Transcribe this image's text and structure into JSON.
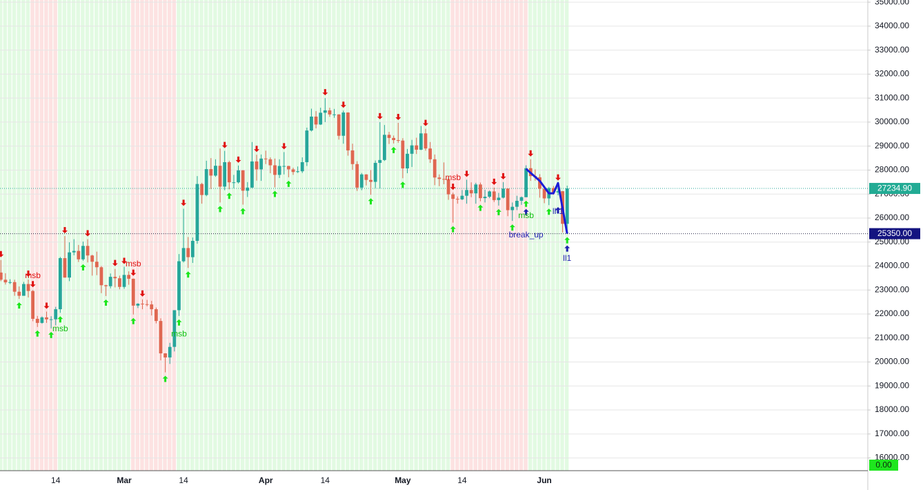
{
  "chart_data": {
    "type": "candlestick",
    "categories": [
      null,
      null,
      null,
      null,
      null,
      null,
      null,
      null,
      null,
      null,
      null,
      null,
      "14",
      null,
      null,
      null,
      null,
      null,
      null,
      null,
      null,
      null,
      null,
      null,
      null,
      null,
      null,
      "Mar",
      null,
      null,
      null,
      null,
      null,
      null,
      null,
      null,
      null,
      null,
      null,
      null,
      "14",
      null,
      null,
      null,
      null,
      null,
      null,
      null,
      null,
      null,
      null,
      null,
      null,
      null,
      null,
      null,
      null,
      null,
      "Apr",
      null,
      null,
      null,
      null,
      null,
      null,
      null,
      null,
      null,
      null,
      null,
      null,
      "14",
      null,
      null,
      null,
      null,
      null,
      null,
      null,
      null,
      null,
      null,
      null,
      null,
      null,
      null,
      null,
      null,
      "May",
      null,
      null,
      null,
      null,
      null,
      null,
      null,
      null,
      null,
      null,
      null,
      null,
      "14",
      null,
      null,
      null,
      null,
      null,
      null,
      null,
      null,
      null,
      null,
      null,
      null,
      null,
      null,
      null,
      null,
      null,
      "Jun",
      null,
      null,
      null,
      null,
      null
    ],
    "open": [
      23730,
      23430,
      23320,
      23330,
      22930,
      22760,
      23250,
      22960,
      21800,
      21630,
      21860,
      21780,
      21780,
      22200,
      24330,
      23520,
      24570,
      24630,
      24280,
      24840,
      24440,
      24180,
      23950,
      23200,
      23160,
      23550,
      23490,
      23130,
      23630,
      23470,
      22350,
      22430,
      22410,
      22400,
      22200,
      21710,
      20360,
      20190,
      20630,
      22160,
      24200,
      24750,
      24370,
      25050,
      27420,
      26960,
      28040,
      27770,
      28180,
      27310,
      28330,
      27490,
      27490,
      27990,
      27140,
      27270,
      28360,
      28030,
      28480,
      28450,
      28200,
      27800,
      28170,
      28170,
      28030,
      27920,
      27950,
      28330,
      29650,
      30230,
      29900,
      30390,
      30490,
      30320,
      30320,
      29430,
      30400,
      28820,
      28250,
      27270,
      27820,
      27590,
      27510,
      28300,
      28420,
      29470,
      29340,
      29250,
      29230,
      28070,
      28680,
      29030,
      28850,
      29530,
      28900,
      28450,
      27690,
      27630,
      27620,
      26990,
      26800,
      26780,
      26930,
      27170,
      27030,
      27400,
      26830,
      26890,
      27110,
      26750,
      26850,
      27230,
      26330,
      26470,
      26720,
      26870,
      28080,
      27750,
      27700,
      27220,
      26820,
      27250,
      27070,
      27120,
      25760
    ],
    "high": [
      24250,
      23700,
      23450,
      23430,
      23150,
      23340,
      23440,
      23000,
      21920,
      21900,
      22100,
      21910,
      22300,
      24380,
      25250,
      24990,
      25120,
      24880,
      25020,
      25120,
      24470,
      24600,
      24000,
      23220,
      23690,
      23880,
      23600,
      23970,
      23780,
      23480,
      22450,
      22610,
      22590,
      22550,
      22270,
      21820,
      20370,
      20800,
      22160,
      24500,
      26390,
      25210,
      25190,
      27750,
      27470,
      28390,
      28500,
      28450,
      28900,
      28800,
      28390,
      27800,
      28190,
      28000,
      27500,
      29170,
      28640,
      28650,
      28810,
      28530,
      28480,
      28450,
      28750,
      28180,
      28100,
      28150,
      28530,
      29770,
      30560,
      30460,
      30600,
      31000,
      30600,
      30550,
      30330,
      30480,
      30410,
      29100,
      28370,
      27880,
      27830,
      28000,
      28400,
      30000,
      29880,
      29590,
      29440,
      29970,
      29330,
      28880,
      29260,
      29350,
      29840,
      29720,
      29170,
      28650,
      27820,
      28320,
      27660,
      27060,
      26900,
      27170,
      27600,
      27490,
      27470,
      27480,
      27180,
      27150,
      27270,
      27050,
      27500,
      27230,
      26650,
      26930,
      26900,
      28200,
      28450,
      28030,
      27830,
      27340,
      27300,
      27340,
      27450,
      27130,
      27350
    ],
    "low": [
      23370,
      23230,
      23250,
      22760,
      22630,
      22760,
      22690,
      21700,
      21460,
      21600,
      21630,
      21400,
      21530,
      22050,
      23510,
      23370,
      24450,
      24170,
      24220,
      24150,
      23600,
      23620,
      22870,
      22750,
      23070,
      23110,
      23030,
      23050,
      23220,
      21980,
      22250,
      22200,
      22320,
      21940,
      21610,
      20070,
      19570,
      19920,
      20440,
      21920,
      24150,
      23920,
      24130,
      24930,
      26600,
      26910,
      27210,
      27720,
      26650,
      27160,
      27200,
      27240,
      27440,
      26560,
      26880,
      27250,
      27560,
      27550,
      28250,
      27870,
      27280,
      27670,
      27820,
      27700,
      27800,
      27880,
      27880,
      28170,
      29610,
      29740,
      29880,
      30000,
      30220,
      30180,
      29270,
      29100,
      28600,
      28010,
      27130,
      27160,
      27360,
      26970,
      27250,
      27240,
      28380,
      29090,
      29110,
      29140,
      27660,
      27870,
      28130,
      28670,
      28830,
      28810,
      28300,
      27370,
      27330,
      27410,
      26760,
      25810,
      26600,
      26750,
      26600,
      26870,
      26600,
      26700,
      26650,
      26830,
      26670,
      26520,
      26820,
      26080,
      25880,
      26330,
      26550,
      26870,
      27550,
      27560,
      26850,
      26620,
      26540,
      26970,
      26950,
      25400,
      25350
    ],
    "close": [
      23430,
      23320,
      23330,
      22930,
      22760,
      23250,
      22960,
      21800,
      21630,
      21860,
      21780,
      21780,
      22200,
      24330,
      23520,
      24570,
      24630,
      24280,
      24840,
      24440,
      24180,
      23950,
      23200,
      23160,
      23550,
      23490,
      23130,
      23630,
      23470,
      22350,
      22430,
      22410,
      22400,
      22200,
      21710,
      20360,
      20190,
      20630,
      22160,
      24200,
      24750,
      24370,
      25050,
      27420,
      26960,
      28040,
      27770,
      28180,
      27310,
      28330,
      27490,
      27490,
      27990,
      27140,
      27270,
      28360,
      28030,
      28480,
      28450,
      28200,
      27800,
      28170,
      28170,
      28030,
      27920,
      27950,
      28330,
      29650,
      30230,
      29900,
      30390,
      30490,
      30320,
      30320,
      29430,
      30400,
      28820,
      28250,
      27270,
      27820,
      27590,
      27510,
      28300,
      28420,
      29470,
      29340,
      29250,
      29230,
      28070,
      28680,
      29030,
      28850,
      29530,
      28900,
      28450,
      27690,
      27630,
      27620,
      26990,
      26800,
      26780,
      26930,
      27170,
      27030,
      27400,
      26830,
      26890,
      27110,
      26750,
      26850,
      27230,
      26330,
      26470,
      26720,
      26870,
      28080,
      27750,
      27700,
      27220,
      26820,
      27250,
      27070,
      27120,
      25760,
      27234.9
    ],
    "up_color": "#26a69a",
    "down_color": "#df6751",
    "ylim": [
      15470,
      35090
    ],
    "yticks": [
      {
        "value": 16000,
        "label": "16000.00"
      },
      {
        "value": 17000,
        "label": "17000.00"
      },
      {
        "value": 18000,
        "label": "18000.00"
      },
      {
        "value": 19000,
        "label": "19000.00"
      },
      {
        "value": 20000,
        "label": "20000.00"
      },
      {
        "value": 21000,
        "label": "21000.00"
      },
      {
        "value": 22000,
        "label": "22000.00"
      },
      {
        "value": 23000,
        "label": "23000.00"
      },
      {
        "value": 24000,
        "label": "24000.00"
      },
      {
        "value": 25000,
        "label": "25000.00"
      },
      {
        "value": 26000,
        "label": "26000.00"
      },
      {
        "value": 27000,
        "label": "27000.00"
      },
      {
        "value": 28000,
        "label": "28000.00"
      },
      {
        "value": 29000,
        "label": "29000.00"
      },
      {
        "value": 30000,
        "label": "30000.00"
      },
      {
        "value": 31000,
        "label": "31000.00"
      },
      {
        "value": 32000,
        "label": "32000.00"
      },
      {
        "value": 33000,
        "label": "33000.00"
      },
      {
        "value": 34000,
        "label": "34000.00"
      },
      {
        "value": 35000,
        "label": "35000.00"
      }
    ],
    "grid": true,
    "zones": [
      {
        "first": 0,
        "last": 124,
        "color": "#e2fae2"
      },
      {
        "first": 7,
        "last": 12,
        "color": "#fde2e2"
      },
      {
        "first": 29,
        "last": 38,
        "color": "#fde2e2"
      },
      {
        "first": 99,
        "last": 115,
        "color": "#fde2e2"
      }
    ],
    "down_signals": [
      0,
      6,
      7,
      10,
      14,
      19,
      25,
      27,
      29,
      31,
      40,
      49,
      52,
      56,
      62,
      71,
      75,
      83,
      87,
      93,
      99,
      102,
      108,
      110,
      116,
      122
    ],
    "down_signal_color": "#e01010",
    "up_signals": [
      4,
      8,
      11,
      13,
      18,
      23,
      29,
      36,
      39,
      41,
      48,
      50,
      53,
      60,
      63,
      81,
      86,
      88,
      99,
      105,
      109,
      112,
      115,
      120,
      124
    ],
    "up_signal_color": "#19e619",
    "structure_signals": [
      115,
      122,
      124
    ],
    "structure_color": "#1f1fb0",
    "zigzag": {
      "color": "#1c1cd6",
      "at": [
        115,
        118,
        120,
        121,
        122,
        124
      ],
      "values": [
        28050,
        27550,
        27030,
        27030,
        27460,
        25350
      ]
    },
    "annotations": [
      {
        "text": "msb",
        "at": 7,
        "value": 23590,
        "color": "#e01010"
      },
      {
        "text": "msb",
        "at": 29,
        "value": 24080,
        "color": "#e01010"
      },
      {
        "text": "msb",
        "at": 13,
        "value": 21375,
        "color": "#10c010"
      },
      {
        "text": "msb",
        "at": 39,
        "value": 21150,
        "color": "#10c010"
      },
      {
        "text": "msb",
        "at": 99,
        "value": 27670,
        "color": "#e01010"
      },
      {
        "text": "msb",
        "at": 115,
        "value": 26090,
        "color": "#10c010"
      },
      {
        "text": "break_up",
        "at": 115,
        "value": 25285,
        "color": "#1f1fb0"
      },
      {
        "text": "lh1",
        "at": 122,
        "value": 26260,
        "color": "#1f1fb0"
      },
      {
        "text": "ll1",
        "at": 124,
        "value": 24310,
        "color": "#1f1fb0"
      }
    ],
    "price_lines": [
      {
        "value": 27234.9,
        "label": "27234.90",
        "color": "#22ab94",
        "line_color": "#26a69a"
      },
      {
        "value": 25350,
        "label": "25350.00",
        "color": "#141480",
        "line_color": "#222244"
      }
    ],
    "indicator_label": {
      "label": "0.00",
      "color": "#1ee61e"
    }
  }
}
